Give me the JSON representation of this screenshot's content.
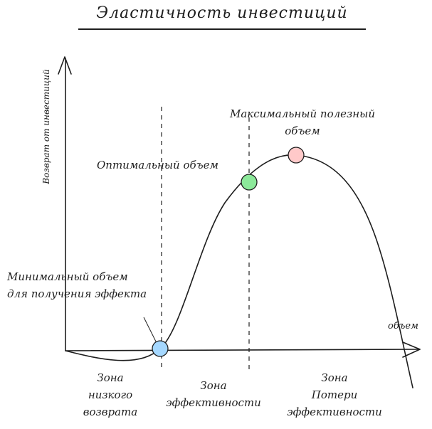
{
  "title": "Эластичность инвестиций",
  "axes": {
    "y_label": "Возврат от инвестиций",
    "x_label": "объем"
  },
  "points": {
    "min": {
      "label": [
        "Минимальный объем",
        "для получения эффекта"
      ],
      "color": "#a5d8ff"
    },
    "optimal": {
      "label": "Оптимальный объем",
      "color": "#8ce99a"
    },
    "max": {
      "label": [
        "Максимальный полезный",
        "объем"
      ],
      "color": "#ffc9c9"
    }
  },
  "zones": {
    "low": [
      "Зона",
      "низкого",
      "возврата"
    ],
    "effective": [
      "Зона",
      "эффективности"
    ],
    "loss": [
      "Зона",
      "Потери",
      "эффективности"
    ]
  },
  "colors": {
    "ink": "#1e1e1e",
    "min": "#a5d8ff",
    "optimal": "#8ce99a",
    "max": "#ffc9c9"
  }
}
